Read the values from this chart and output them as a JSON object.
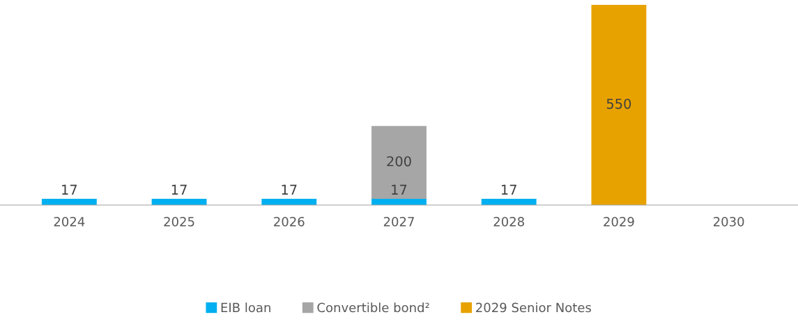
{
  "chart_data": {
    "type": "bar",
    "stacked": true,
    "categories": [
      "2024",
      "2025",
      "2026",
      "2027",
      "2028",
      "2029",
      "2030"
    ],
    "series": [
      {
        "name": "EIB loan",
        "color": "#00b0f0",
        "values": [
          17,
          17,
          17,
          17,
          17,
          null,
          null
        ]
      },
      {
        "name": "Convertible bond²",
        "color": "#a6a6a6",
        "values": [
          null,
          null,
          null,
          200,
          null,
          null,
          null
        ]
      },
      {
        "name": "2029 Senior Notes",
        "color": "#e8a200",
        "values": [
          null,
          null,
          null,
          null,
          null,
          550,
          null
        ]
      }
    ],
    "data_labels": true,
    "legend": "bottom",
    "grid": false
  }
}
